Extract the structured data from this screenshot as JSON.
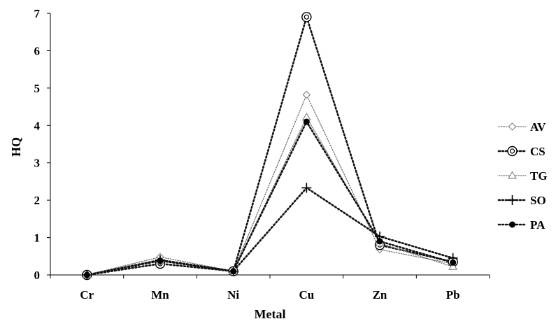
{
  "chart_data": {
    "type": "line",
    "title": "",
    "xlabel": "Metal",
    "ylabel": "HQ",
    "categories": [
      "Cr",
      "Mn",
      "Ni",
      "Cu",
      "Zn",
      "Pb"
    ],
    "ylim": [
      0,
      7
    ],
    "yticks": [
      "0",
      "1",
      "2",
      "3",
      "4",
      "5",
      "6",
      "7"
    ],
    "grid": false,
    "legend_position": "right",
    "series": [
      {
        "name": "AV",
        "marker": "diamond-open",
        "dash": "dotted-fine",
        "values": [
          0.0,
          0.48,
          0.1,
          4.82,
          0.68,
          0.3
        ]
      },
      {
        "name": "CS",
        "marker": "circle-double",
        "dash": "dotted-heavy",
        "values": [
          0.0,
          0.3,
          0.1,
          6.9,
          0.8,
          0.35
        ]
      },
      {
        "name": "TG",
        "marker": "triangle-open",
        "dash": "dotted-fine",
        "values": [
          0.0,
          0.38,
          0.1,
          4.22,
          0.85,
          0.22
        ]
      },
      {
        "name": "SO",
        "marker": "plus",
        "dash": "dotted-heavy",
        "values": [
          0.0,
          0.4,
          0.1,
          2.33,
          1.03,
          0.45
        ]
      },
      {
        "name": "PA",
        "marker": "circle-filled",
        "dash": "dotted-heavy",
        "values": [
          0.0,
          0.38,
          0.1,
          4.1,
          0.9,
          0.33
        ]
      }
    ]
  }
}
